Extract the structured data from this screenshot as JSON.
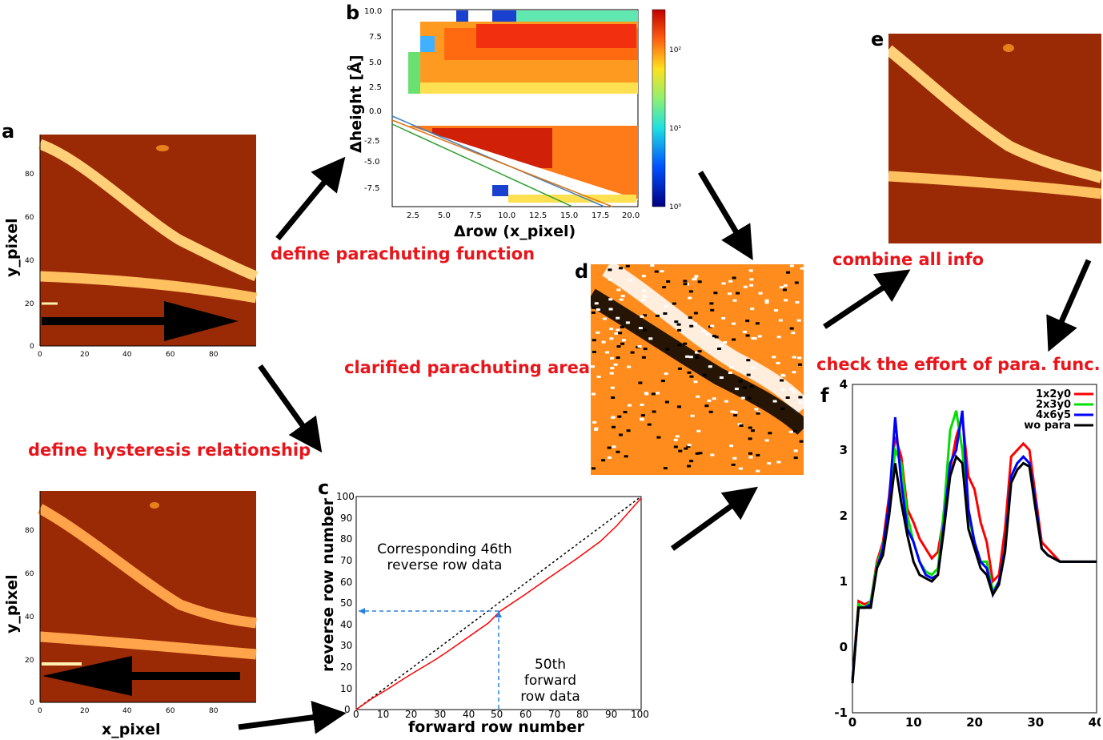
{
  "panels": {
    "a": "a",
    "b": "b",
    "c": "c",
    "d": "d",
    "e": "e",
    "f": "f"
  },
  "labels": {
    "parachuting_function": "define parachuting function",
    "hysteresis": "define hysteresis relationship",
    "clarified_area": "clarified parachuting area",
    "combine": "combine all info",
    "check": "check the effort of para. func."
  },
  "panel_a": {
    "ylabel": "y_pixel",
    "xlabel": "x_pixel",
    "ticks": [
      "0",
      "20",
      "40",
      "60",
      "80"
    ]
  },
  "panel_b": {
    "xlabel": "Δrow (x_pixel)",
    "ylabel": "Δheight [Å]",
    "xticks": [
      "2.5",
      "5.0",
      "7.5",
      "10.0",
      "12.5",
      "15.0",
      "17.5",
      "20.0"
    ],
    "yticks": [
      "10.0",
      "7.5",
      "5.0",
      "2.5",
      "0.0",
      "-2.5",
      "-5.0",
      "-7.5"
    ],
    "colorbar": [
      "10²",
      "10¹",
      "10⁰"
    ]
  },
  "panel_c": {
    "xlabel": "forward row number",
    "ylabel": "reverse row number",
    "ticks": [
      "0",
      "10",
      "20",
      "30",
      "40",
      "50",
      "60",
      "70",
      "80",
      "90",
      "100"
    ],
    "annot_top_1": "Corresponding 46th",
    "annot_top_2": "reverse row data",
    "annot_bot_1": "50th forward",
    "annot_bot_2": "row data"
  },
  "chart_data": {
    "type": "line",
    "x": [
      0,
      1,
      2,
      3,
      4,
      5,
      6,
      7,
      8,
      9,
      10,
      11,
      12,
      13,
      14,
      15,
      16,
      17,
      18,
      19,
      20,
      21,
      22,
      23,
      24,
      25,
      26,
      27,
      28,
      29,
      30,
      31,
      32,
      33,
      34,
      35,
      36,
      37,
      38,
      39,
      40
    ],
    "xlim": [
      0,
      40
    ],
    "ylim": [
      -1,
      4
    ],
    "xticks": [
      "0",
      "10",
      "20",
      "30",
      "40"
    ],
    "yticks": [
      "-1",
      "0",
      "1",
      "2",
      "3",
      "4"
    ],
    "series": [
      {
        "name": "1x2y0",
        "color": "#ff0000",
        "values": [
          -0.5,
          0.7,
          0.65,
          0.7,
          1.3,
          1.6,
          2.3,
          3.2,
          2.9,
          2.1,
          1.9,
          1.65,
          1.5,
          1.35,
          1.45,
          2.0,
          2.7,
          3.2,
          3.5,
          2.6,
          2.4,
          1.9,
          1.6,
          1.0,
          1.1,
          1.8,
          2.9,
          3.0,
          3.1,
          3.0,
          2.3,
          1.6,
          1.5,
          1.4,
          1.3,
          1.3,
          1.3,
          1.3,
          1.3,
          1.3,
          1.3
        ]
      },
      {
        "name": "2x3y0",
        "color": "#00e000",
        "values": [
          -0.5,
          0.65,
          0.6,
          0.7,
          1.25,
          1.55,
          2.1,
          3.0,
          2.8,
          2.0,
          1.6,
          1.3,
          1.15,
          1.1,
          1.2,
          2.1,
          3.3,
          3.6,
          3.0,
          2.0,
          1.6,
          1.3,
          1.3,
          0.85,
          1.0,
          1.5,
          2.6,
          2.8,
          2.9,
          2.8,
          2.2,
          1.5,
          1.4,
          1.35,
          1.3,
          1.3,
          1.3,
          1.3,
          1.3,
          1.3,
          1.3
        ]
      },
      {
        "name": "4x6y5",
        "color": "#0000ff",
        "values": [
          -0.5,
          0.6,
          0.6,
          0.65,
          1.2,
          1.5,
          2.2,
          3.5,
          2.5,
          1.8,
          1.6,
          1.3,
          1.1,
          1.05,
          1.1,
          1.9,
          2.8,
          3.0,
          3.6,
          2.1,
          1.6,
          1.3,
          1.2,
          0.8,
          1.0,
          1.5,
          2.6,
          2.8,
          2.9,
          2.8,
          2.2,
          1.5,
          1.4,
          1.35,
          1.3,
          1.3,
          1.3,
          1.3,
          1.3,
          1.3,
          1.3
        ]
      },
      {
        "name": "wo para",
        "color": "#000000",
        "values": [
          -0.55,
          0.6,
          0.6,
          0.6,
          1.2,
          1.4,
          2.0,
          2.8,
          2.2,
          1.7,
          1.3,
          1.1,
          1.05,
          1.0,
          1.1,
          1.8,
          2.6,
          2.9,
          2.8,
          1.8,
          1.5,
          1.2,
          1.1,
          0.8,
          0.95,
          1.45,
          2.5,
          2.7,
          2.8,
          2.75,
          2.1,
          1.5,
          1.4,
          1.35,
          1.3,
          1.3,
          1.3,
          1.3,
          1.3,
          1.3,
          1.3
        ]
      }
    ]
  }
}
